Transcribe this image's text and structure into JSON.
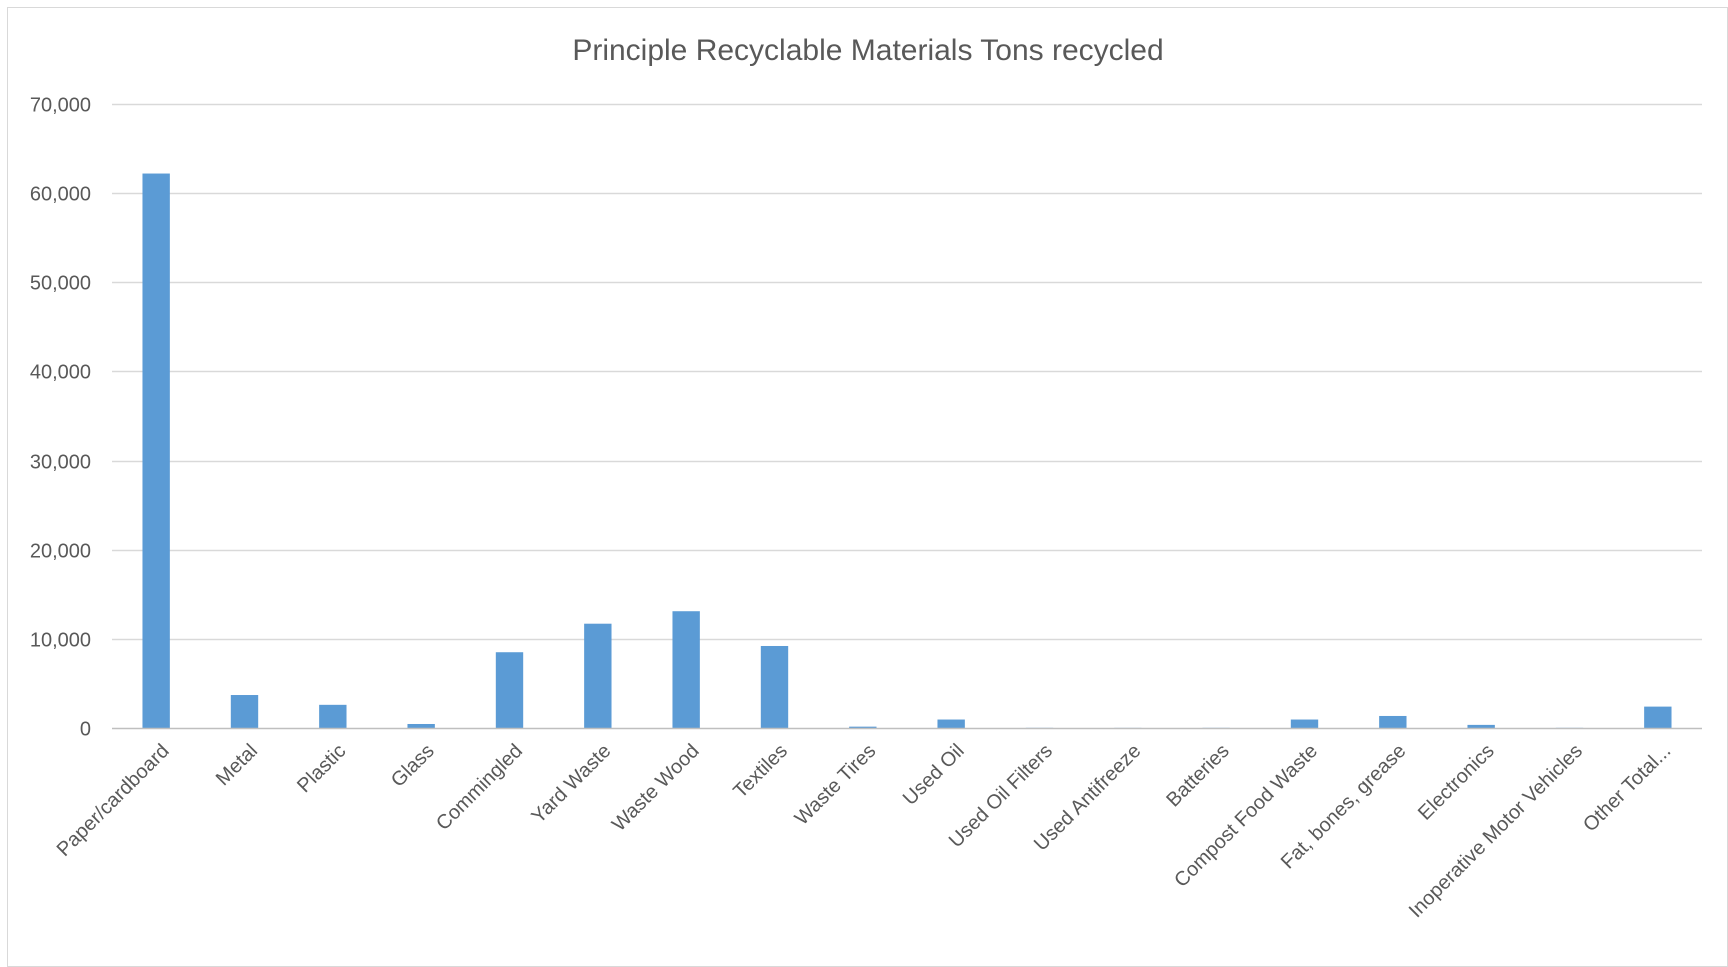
{
  "chart_data": {
    "type": "bar",
    "title": "Principle Recyclable Materials Tons recycled",
    "xlabel": "",
    "ylabel": "",
    "categories": [
      "Paper/cardboard",
      "Metal",
      "Plastic",
      "Glass",
      "Commingled",
      "Yard Waste",
      "Waste Wood",
      "Textiles",
      "Waste Tires",
      "Used Oil",
      "Used Oil Filters",
      "Used Antifreeze",
      "Batteries",
      "Compost Food Waste",
      "Fat, bones, grease",
      "Electronics",
      "Inoperative Motor Vehicles",
      "Other Total..."
    ],
    "values": [
      62200,
      3700,
      2600,
      450,
      8500,
      11700,
      13100,
      9200,
      150,
      950,
      20,
      15,
      20,
      950,
      1350,
      350,
      20,
      2400
    ],
    "ylim": [
      0,
      70000
    ],
    "yticks": [
      0,
      10000,
      20000,
      30000,
      40000,
      50000,
      60000,
      70000
    ],
    "ytick_labels": [
      "0",
      "10,000",
      "20,000",
      "30,000",
      "40,000",
      "50,000",
      "60,000",
      "70,000"
    ],
    "grid": true,
    "legend": "none",
    "colors": {
      "bar": "#5b9bd5",
      "grid": "#d9d9d9",
      "axis": "#bfbfbf",
      "text": "#595959",
      "frame": "#d9d9d9"
    }
  }
}
